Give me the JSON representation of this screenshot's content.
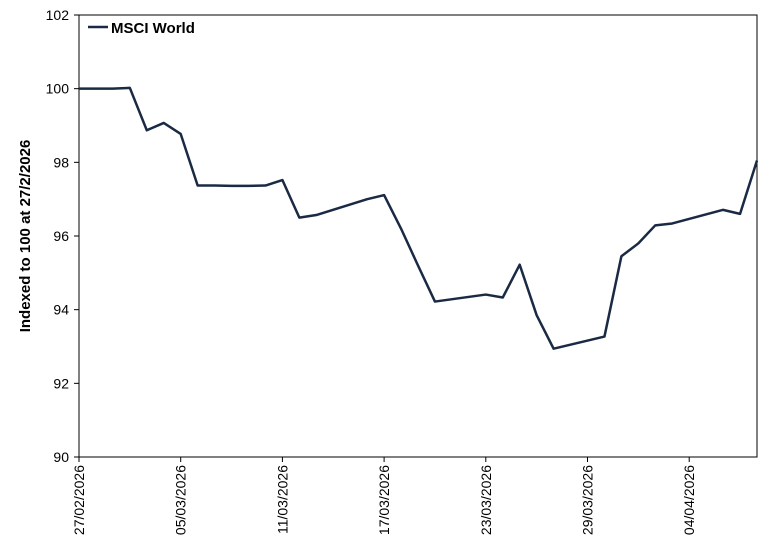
{
  "chart_data": {
    "type": "line",
    "title": "",
    "xlabel": "",
    "ylabel": "Indexed to 100 at 27/2/2026",
    "ylim": [
      90,
      102
    ],
    "yticks": [
      "90",
      "92",
      "94",
      "96",
      "98",
      "100",
      "102"
    ],
    "xticks": [
      "27/02/2026",
      "05/03/2026",
      "11/03/2026",
      "17/03/2026",
      "23/03/2026",
      "29/03/2026",
      "04/04/2026"
    ],
    "x_range": [
      "2026-02-27",
      "2026-04-08"
    ],
    "grid": false,
    "legend": "top-left",
    "line_color": "#1a2a44",
    "series": [
      {
        "name": "MSCI World",
        "x": [
          "2026-02-27",
          "2026-02-28",
          "2026-03-01",
          "2026-03-02",
          "2026-03-03",
          "2026-03-04",
          "2026-03-05",
          "2026-03-06",
          "2026-03-07",
          "2026-03-08",
          "2026-03-09",
          "2026-03-10",
          "2026-03-11",
          "2026-03-12",
          "2026-03-13",
          "2026-03-16",
          "2026-03-17",
          "2026-03-18",
          "2026-03-19",
          "2026-03-20",
          "2026-03-23",
          "2026-03-24",
          "2026-03-25",
          "2026-03-26",
          "2026-03-27",
          "2026-03-30",
          "2026-03-31",
          "2026-04-01",
          "2026-04-02",
          "2026-04-03",
          "2026-04-06",
          "2026-04-07",
          "2026-04-08"
        ],
        "values": [
          100.0,
          100.0,
          100.0,
          100.02,
          98.87,
          99.07,
          98.77,
          97.37,
          97.37,
          97.36,
          97.36,
          97.37,
          97.52,
          96.5,
          96.57,
          97.0,
          97.11,
          96.2,
          95.2,
          94.22,
          94.41,
          94.33,
          95.22,
          93.85,
          92.94,
          93.27,
          95.45,
          95.8,
          96.29,
          96.34,
          96.71,
          96.6,
          98.05
        ]
      }
    ]
  }
}
